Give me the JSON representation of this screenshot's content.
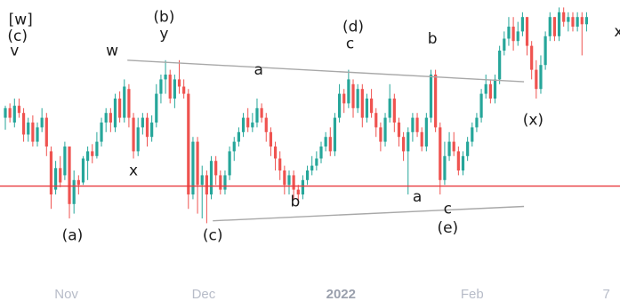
{
  "chart_data": {
    "type": "candlestick",
    "x_ticks": [
      {
        "label": "Nov",
        "week": 2,
        "bold": false
      },
      {
        "label": "Dec",
        "week": 6.5,
        "bold": false
      },
      {
        "label": "2022",
        "week": 11,
        "bold": true
      },
      {
        "label": "Feb",
        "week": 15.3,
        "bold": false
      },
      {
        "label": "7",
        "week": 19.7,
        "bold": false
      }
    ],
    "y_range": [
      0,
      100
    ],
    "colors": {
      "up": "#26a69a",
      "down": "#ef5350",
      "trendline": "#a8a8a8",
      "level": "#e8383d"
    },
    "horizontal_level": 33.5,
    "trendlines": [
      {
        "from": [
          4,
          86
        ],
        "to": [
          17,
          77
        ]
      },
      {
        "from": [
          6.8,
          19
        ],
        "to": [
          17,
          25
        ]
      }
    ],
    "wave_labels": [
      {
        "text": "[w]",
        "week": 0.5,
        "value": 101
      },
      {
        "text": "(c)",
        "week": 0.4,
        "value": 94
      },
      {
        "text": "v",
        "week": 0.3,
        "value": 88
      },
      {
        "text": "w",
        "week": 3.5,
        "value": 88
      },
      {
        "text": "(b)",
        "week": 5.2,
        "value": 102
      },
      {
        "text": "y",
        "week": 5.2,
        "value": 95
      },
      {
        "text": "x",
        "week": 4.2,
        "value": 38
      },
      {
        "text": "a",
        "week": 8.3,
        "value": 80
      },
      {
        "text": "(a)",
        "week": 2.2,
        "value": 11
      },
      {
        "text": "(c)",
        "week": 6.8,
        "value": 11
      },
      {
        "text": "b",
        "week": 9.5,
        "value": 25
      },
      {
        "text": "(d)",
        "week": 11.4,
        "value": 98
      },
      {
        "text": "c",
        "week": 11.3,
        "value": 91
      },
      {
        "text": "b",
        "week": 14,
        "value": 93
      },
      {
        "text": "a",
        "week": 13.5,
        "value": 27
      },
      {
        "text": "c",
        "week": 14.5,
        "value": 22
      },
      {
        "text": "(e)",
        "week": 14.5,
        "value": 14
      },
      {
        "text": "(x)",
        "week": 17.3,
        "value": 59
      },
      {
        "text": "x",
        "week": 20.1,
        "value": 96
      }
    ],
    "candles": [
      [
        0.0,
        62,
        66,
        67,
        57
      ],
      [
        0.15,
        66,
        62,
        68,
        60
      ],
      [
        0.3,
        60,
        67,
        70,
        58
      ],
      [
        0.45,
        67,
        64,
        70,
        62
      ],
      [
        0.6,
        64,
        55,
        66,
        52
      ],
      [
        0.75,
        55,
        60,
        62,
        52
      ],
      [
        0.9,
        60,
        52,
        63,
        50
      ],
      [
        1.05,
        52,
        58,
        60,
        50
      ],
      [
        1.2,
        58,
        62,
        66,
        56
      ],
      [
        1.35,
        62,
        50,
        64,
        46
      ],
      [
        1.5,
        48,
        30,
        50,
        24
      ],
      [
        1.65,
        32,
        41,
        44,
        30
      ],
      [
        1.8,
        41,
        35,
        46,
        33
      ],
      [
        1.95,
        38,
        50,
        52,
        36
      ],
      [
        2.1,
        50,
        26,
        50,
        20
      ],
      [
        2.25,
        26,
        36,
        40,
        22
      ],
      [
        2.4,
        36,
        34,
        38,
        30
      ],
      [
        2.55,
        35,
        45,
        46,
        34
      ],
      [
        2.7,
        44,
        48,
        50,
        36
      ],
      [
        2.85,
        48,
        46,
        51,
        43
      ],
      [
        3.0,
        46,
        52,
        56,
        45
      ],
      [
        3.15,
        52,
        60,
        62,
        50
      ],
      [
        3.3,
        60,
        64,
        66,
        56
      ],
      [
        3.45,
        64,
        60,
        66,
        56
      ],
      [
        3.6,
        58,
        70,
        72,
        56
      ],
      [
        3.75,
        70,
        62,
        73,
        60
      ],
      [
        3.9,
        62,
        75,
        78,
        60
      ],
      [
        4.05,
        74,
        62,
        76,
        58
      ],
      [
        4.2,
        62,
        48,
        64,
        45
      ],
      [
        4.35,
        48,
        58,
        62,
        46
      ],
      [
        4.5,
        58,
        62,
        64,
        55
      ],
      [
        4.65,
        62,
        54,
        64,
        50
      ],
      [
        4.8,
        54,
        60,
        63,
        52
      ],
      [
        4.95,
        60,
        72,
        76,
        58
      ],
      [
        5.1,
        72,
        78,
        80,
        68
      ],
      [
        5.25,
        78,
        80,
        86,
        72
      ],
      [
        5.4,
        80,
        70,
        82,
        68
      ],
      [
        5.55,
        70,
        78,
        80,
        66
      ],
      [
        5.7,
        78,
        75,
        86,
        72
      ],
      [
        5.85,
        75,
        72,
        78,
        70
      ],
      [
        6.0,
        72,
        30,
        74,
        24
      ],
      [
        6.15,
        30,
        52,
        54,
        28
      ],
      [
        6.3,
        52,
        34,
        54,
        22
      ],
      [
        6.45,
        34,
        38,
        42,
        20
      ],
      [
        6.6,
        38,
        30,
        40,
        18
      ],
      [
        6.75,
        30,
        44,
        46,
        28
      ],
      [
        6.9,
        44,
        38,
        46,
        34
      ],
      [
        7.05,
        38,
        32,
        40,
        30
      ],
      [
        7.2,
        32,
        38,
        40,
        30
      ],
      [
        7.35,
        38,
        48,
        50,
        36
      ],
      [
        7.5,
        48,
        52,
        54,
        44
      ],
      [
        7.65,
        52,
        56,
        58,
        50
      ],
      [
        7.8,
        56,
        62,
        64,
        54
      ],
      [
        7.95,
        62,
        58,
        66,
        56
      ],
      [
        8.1,
        58,
        60,
        64,
        56
      ],
      [
        8.25,
        60,
        66,
        70,
        58
      ],
      [
        8.4,
        66,
        62,
        68,
        60
      ],
      [
        8.55,
        62,
        56,
        64,
        52
      ],
      [
        8.7,
        56,
        50,
        58,
        46
      ],
      [
        8.85,
        50,
        45,
        52,
        40
      ],
      [
        9.0,
        45,
        40,
        48,
        36
      ],
      [
        9.15,
        40,
        34,
        42,
        30
      ],
      [
        9.3,
        34,
        38,
        40,
        30
      ],
      [
        9.45,
        38,
        32,
        40,
        28
      ],
      [
        9.6,
        32,
        30,
        34,
        26
      ],
      [
        9.75,
        30,
        36,
        38,
        28
      ],
      [
        9.9,
        36,
        40,
        42,
        34
      ],
      [
        10.05,
        40,
        42,
        46,
        38
      ],
      [
        10.2,
        42,
        45,
        48,
        40
      ],
      [
        10.35,
        45,
        50,
        52,
        43
      ],
      [
        10.5,
        50,
        54,
        56,
        48
      ],
      [
        10.65,
        54,
        48,
        58,
        46
      ],
      [
        10.8,
        48,
        62,
        64,
        46
      ],
      [
        10.95,
        62,
        72,
        76,
        60
      ],
      [
        11.1,
        72,
        68,
        74,
        64
      ],
      [
        11.25,
        68,
        78,
        82,
        66
      ],
      [
        11.4,
        76,
        66,
        78,
        62
      ],
      [
        11.55,
        66,
        74,
        76,
        64
      ],
      [
        11.7,
        74,
        62,
        76,
        58
      ],
      [
        11.85,
        62,
        70,
        72,
        60
      ],
      [
        12.0,
        70,
        64,
        74,
        62
      ],
      [
        12.15,
        64,
        58,
        66,
        54
      ],
      [
        12.3,
        58,
        52,
        60,
        48
      ],
      [
        12.45,
        52,
        62,
        64,
        50
      ],
      [
        12.6,
        62,
        70,
        76,
        60
      ],
      [
        12.75,
        70,
        60,
        72,
        56
      ],
      [
        12.9,
        60,
        54,
        62,
        50
      ],
      [
        13.05,
        54,
        48,
        56,
        44
      ],
      [
        13.2,
        48,
        56,
        58,
        30
      ],
      [
        13.35,
        56,
        62,
        64,
        52
      ],
      [
        13.5,
        62,
        56,
        64,
        54
      ],
      [
        13.65,
        56,
        50,
        58,
        48
      ],
      [
        13.8,
        50,
        62,
        64,
        48
      ],
      [
        13.95,
        62,
        80,
        82,
        60
      ],
      [
        14.1,
        80,
        58,
        82,
        56
      ],
      [
        14.25,
        58,
        36,
        60,
        30
      ],
      [
        14.4,
        36,
        46,
        52,
        34
      ],
      [
        14.55,
        46,
        52,
        56,
        44
      ],
      [
        14.7,
        52,
        48,
        56,
        46
      ],
      [
        14.85,
        48,
        40,
        50,
        38
      ],
      [
        15.0,
        40,
        46,
        48,
        38
      ],
      [
        15.15,
        46,
        52,
        54,
        44
      ],
      [
        15.3,
        52,
        58,
        60,
        50
      ],
      [
        15.45,
        58,
        62,
        64,
        56
      ],
      [
        15.6,
        62,
        72,
        74,
        60
      ],
      [
        15.75,
        72,
        76,
        80,
        70
      ],
      [
        15.9,
        76,
        70,
        78,
        68
      ],
      [
        16.05,
        70,
        78,
        80,
        68
      ],
      [
        16.2,
        78,
        90,
        92,
        76
      ],
      [
        16.35,
        90,
        95,
        98,
        88
      ],
      [
        16.5,
        95,
        100,
        104,
        92
      ],
      [
        16.65,
        100,
        94,
        104,
        90
      ],
      [
        16.8,
        94,
        98,
        102,
        92
      ],
      [
        16.95,
        98,
        104,
        106,
        96
      ],
      [
        17.1,
        104,
        92,
        104,
        88
      ],
      [
        17.25,
        92,
        82,
        94,
        78
      ],
      [
        17.4,
        82,
        74,
        86,
        70
      ],
      [
        17.55,
        74,
        84,
        88,
        72
      ],
      [
        17.7,
        84,
        96,
        98,
        82
      ],
      [
        17.85,
        96,
        104,
        106,
        94
      ],
      [
        18.0,
        104,
        96,
        104,
        94
      ],
      [
        18.15,
        96,
        106,
        108,
        94
      ],
      [
        18.3,
        106,
        102,
        108,
        100
      ],
      [
        18.45,
        102,
        104,
        106,
        98
      ],
      [
        18.6,
        104,
        100,
        106,
        98
      ],
      [
        18.75,
        100,
        104,
        106,
        98
      ],
      [
        18.9,
        104,
        101,
        106,
        88
      ],
      [
        19.05,
        101,
        104,
        106,
        98
      ]
    ]
  }
}
